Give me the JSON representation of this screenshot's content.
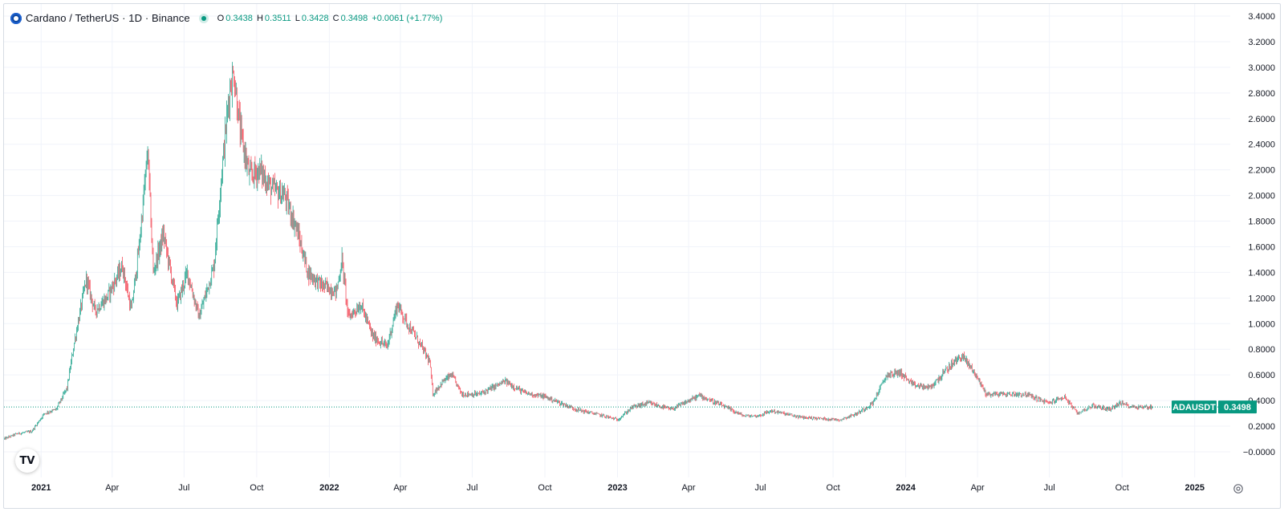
{
  "legend": {
    "title": "Cardano / TetherUS · 1D · Binance",
    "open_label": "O",
    "open": "0.3438",
    "high_label": "H",
    "high": "0.3511",
    "low_label": "L",
    "low": "0.3428",
    "close_label": "C",
    "close": "0.3498",
    "change": "+0.0061 (+1.77%)"
  },
  "logo_text": "TV",
  "colors": {
    "up": "#089981",
    "down": "#f23645",
    "grid": "#f0f3fa",
    "axis_text": "#131722",
    "price_line": "#089981"
  },
  "chart_data": {
    "type": "candlestick",
    "title": "Cardano / TetherUS · 1D · Binance",
    "symbol": "ADAUSDT",
    "last_price": 0.3498,
    "last_price_label": "0.3498",
    "y_axis": {
      "min": -0.1,
      "max": 3.45,
      "ticks": [
        3.4,
        3.2,
        3.0,
        2.8,
        2.6,
        2.4,
        2.2,
        2.0,
        1.8,
        1.6,
        1.4,
        1.2,
        1.0,
        0.8,
        0.6,
        0.4,
        0.2,
        0.0
      ],
      "tick_labels": [
        "3.4000",
        "3.2000",
        "3.0000",
        "2.8000",
        "2.6000",
        "2.4000",
        "2.2000",
        "2.0000",
        "1.8000",
        "1.6000",
        "1.4000",
        "1.2000",
        "1.0000",
        "0.8000",
        "0.6000",
        "0.4000",
        "0.2000",
        "−0.0000"
      ]
    },
    "x_axis": {
      "start": "2020-11-15",
      "end": "2025-02-15",
      "ticks": [
        {
          "date": "2021-01-01",
          "label": "2021",
          "bold": true
        },
        {
          "date": "2021-04-01",
          "label": "Apr",
          "bold": false
        },
        {
          "date": "2021-07-01",
          "label": "Jul",
          "bold": false
        },
        {
          "date": "2021-10-01",
          "label": "Oct",
          "bold": false
        },
        {
          "date": "2022-01-01",
          "label": "2022",
          "bold": true
        },
        {
          "date": "2022-04-01",
          "label": "Apr",
          "bold": false
        },
        {
          "date": "2022-07-01",
          "label": "Jul",
          "bold": false
        },
        {
          "date": "2022-10-01",
          "label": "Oct",
          "bold": false
        },
        {
          "date": "2023-01-01",
          "label": "2023",
          "bold": true
        },
        {
          "date": "2023-04-01",
          "label": "Apr",
          "bold": false
        },
        {
          "date": "2023-07-01",
          "label": "Jul",
          "bold": false
        },
        {
          "date": "2023-10-01",
          "label": "Oct",
          "bold": false
        },
        {
          "date": "2024-01-01",
          "label": "2024",
          "bold": true
        },
        {
          "date": "2024-04-01",
          "label": "Apr",
          "bold": false
        },
        {
          "date": "2024-07-01",
          "label": "Jul",
          "bold": false
        },
        {
          "date": "2024-10-01",
          "label": "Oct",
          "bold": false
        },
        {
          "date": "2025-01-01",
          "label": "2025",
          "bold": true
        }
      ]
    },
    "price_path": [
      [
        "2020-11-15",
        0.1
      ],
      [
        "2020-12-01",
        0.14
      ],
      [
        "2020-12-20",
        0.16
      ],
      [
        "2021-01-05",
        0.3
      ],
      [
        "2021-01-20",
        0.33
      ],
      [
        "2021-02-03",
        0.5
      ],
      [
        "2021-02-12",
        0.85
      ],
      [
        "2021-02-27",
        1.35
      ],
      [
        "2021-03-10",
        1.1
      ],
      [
        "2021-03-25",
        1.2
      ],
      [
        "2021-04-14",
        1.45
      ],
      [
        "2021-04-25",
        1.1
      ],
      [
        "2021-05-05",
        1.6
      ],
      [
        "2021-05-16",
        2.35
      ],
      [
        "2021-05-23",
        1.4
      ],
      [
        "2021-06-05",
        1.7
      ],
      [
        "2021-06-22",
        1.15
      ],
      [
        "2021-07-05",
        1.4
      ],
      [
        "2021-07-20",
        1.05
      ],
      [
        "2021-08-08",
        1.45
      ],
      [
        "2021-08-18",
        2.2
      ],
      [
        "2021-08-28",
        2.85
      ],
      [
        "2021-09-02",
        2.95
      ],
      [
        "2021-09-10",
        2.5
      ],
      [
        "2021-09-22",
        2.15
      ],
      [
        "2021-10-05",
        2.2
      ],
      [
        "2021-10-20",
        2.05
      ],
      [
        "2021-11-05",
        2.0
      ],
      [
        "2021-11-20",
        1.75
      ],
      [
        "2021-12-05",
        1.4
      ],
      [
        "2021-12-22",
        1.3
      ],
      [
        "2022-01-10",
        1.25
      ],
      [
        "2022-01-17",
        1.5
      ],
      [
        "2022-01-25",
        1.05
      ],
      [
        "2022-02-10",
        1.15
      ],
      [
        "2022-02-25",
        0.9
      ],
      [
        "2022-03-15",
        0.82
      ],
      [
        "2022-03-28",
        1.15
      ],
      [
        "2022-04-10",
        1.0
      ],
      [
        "2022-04-25",
        0.85
      ],
      [
        "2022-05-08",
        0.7
      ],
      [
        "2022-05-12",
        0.45
      ],
      [
        "2022-05-25",
        0.55
      ],
      [
        "2022-06-05",
        0.6
      ],
      [
        "2022-06-18",
        0.45
      ],
      [
        "2022-07-10",
        0.45
      ],
      [
        "2022-08-12",
        0.55
      ],
      [
        "2022-09-05",
        0.46
      ],
      [
        "2022-10-01",
        0.43
      ],
      [
        "2022-11-10",
        0.33
      ],
      [
        "2022-12-15",
        0.28
      ],
      [
        "2023-01-01",
        0.25
      ],
      [
        "2023-01-20",
        0.35
      ],
      [
        "2023-02-10",
        0.38
      ],
      [
        "2023-03-10",
        0.33
      ],
      [
        "2023-04-15",
        0.44
      ],
      [
        "2023-05-10",
        0.37
      ],
      [
        "2023-06-10",
        0.28
      ],
      [
        "2023-06-28",
        0.28
      ],
      [
        "2023-07-15",
        0.32
      ],
      [
        "2023-08-20",
        0.27
      ],
      [
        "2023-10-10",
        0.25
      ],
      [
        "2023-11-01",
        0.3
      ],
      [
        "2023-11-20",
        0.38
      ],
      [
        "2023-12-08",
        0.6
      ],
      [
        "2023-12-25",
        0.62
      ],
      [
        "2024-01-10",
        0.52
      ],
      [
        "2024-02-01",
        0.5
      ],
      [
        "2024-02-28",
        0.68
      ],
      [
        "2024-03-12",
        0.75
      ],
      [
        "2024-03-28",
        0.62
      ],
      [
        "2024-04-12",
        0.45
      ],
      [
        "2024-05-05",
        0.45
      ],
      [
        "2024-06-01",
        0.45
      ],
      [
        "2024-06-30",
        0.38
      ],
      [
        "2024-07-20",
        0.43
      ],
      [
        "2024-08-05",
        0.3
      ],
      [
        "2024-08-25",
        0.36
      ],
      [
        "2024-09-15",
        0.33
      ],
      [
        "2024-09-28",
        0.38
      ],
      [
        "2024-10-15",
        0.35
      ],
      [
        "2024-11-10",
        0.35
      ]
    ]
  }
}
